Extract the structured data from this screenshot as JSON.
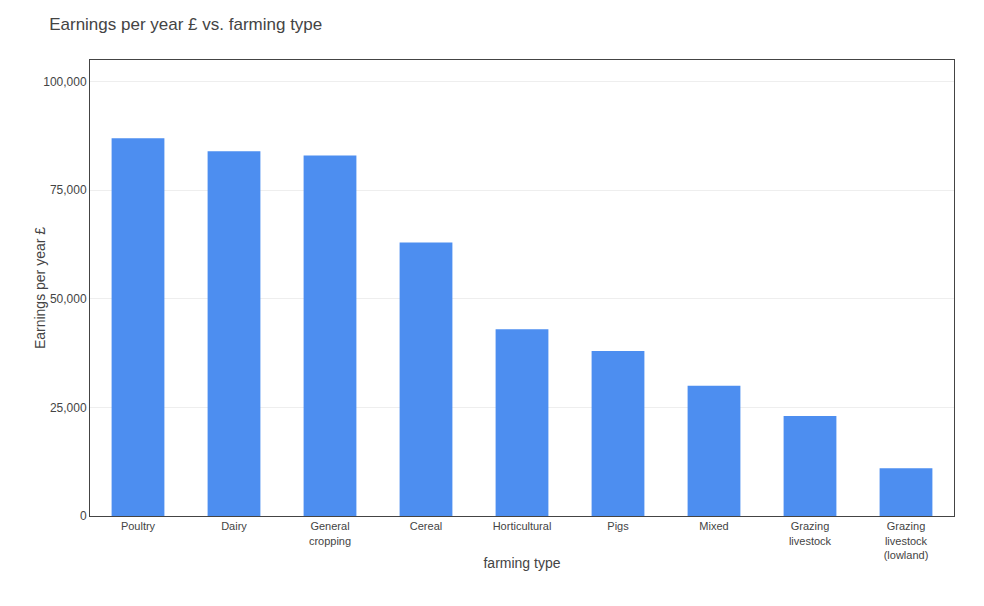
{
  "chart_data": {
    "type": "bar",
    "title": "Earnings per year £ vs. farming type",
    "xlabel": "farming type",
    "ylabel": "Earnings per year £",
    "categories": [
      "Poultry",
      "Dairy",
      "General\ncropping",
      "Cereal",
      "Horticultural",
      "Pigs",
      "Mixed",
      "Grazing\nlivestock",
      "Grazing\nlivestock\n(lowland)"
    ],
    "values": [
      87000,
      84000,
      83000,
      63000,
      43000,
      38000,
      30000,
      23000,
      11000
    ],
    "color": "#4d8ef0",
    "ylim": [
      0,
      105000
    ],
    "yticks": [
      0,
      {
        "value": 25000,
        "label": "25,000"
      },
      {
        "value": 50000,
        "label": "50,000"
      },
      {
        "value": 75000,
        "label": "75,000"
      },
      {
        "value": 100000,
        "label": "100,000"
      }
    ],
    "grid": true
  }
}
